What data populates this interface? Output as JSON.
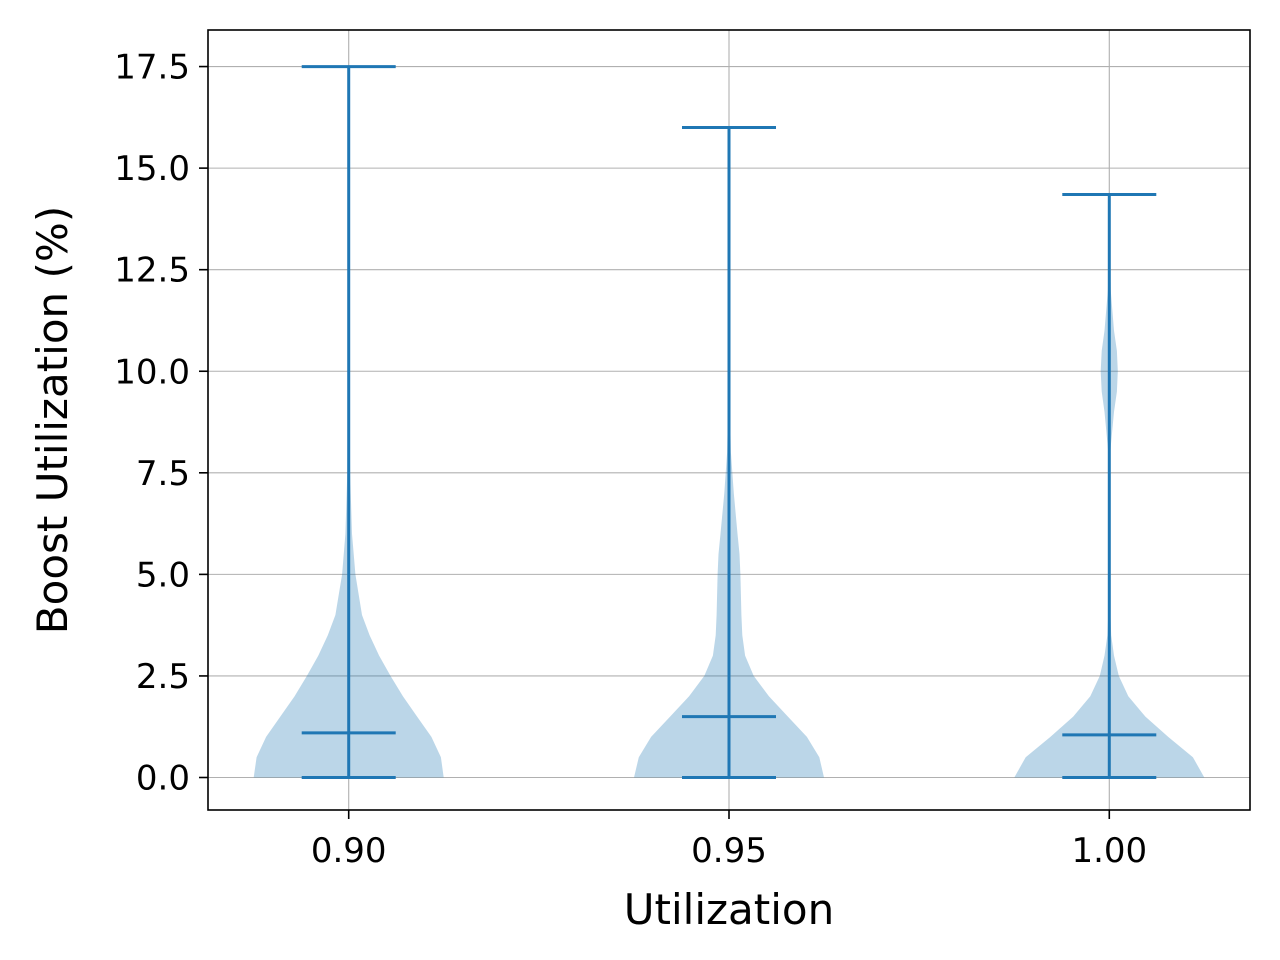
{
  "colors": {
    "accent": "#1f77b4",
    "violin_fill": "#1f77b4",
    "grid": "#b0b0b0",
    "axis": "#000000"
  },
  "chart_data": {
    "type": "violin",
    "title": "",
    "xlabel": "Utilization",
    "ylabel": "Boost Utilization (%)",
    "grid": true,
    "ylim": [
      -0.8,
      18.4
    ],
    "xlim": [
      0.8815,
      1.0185
    ],
    "categories": [
      "0.90",
      "0.95",
      "1.00"
    ],
    "yticks": [
      "0.0",
      "2.5",
      "5.0",
      "7.5",
      "10.0",
      "12.5",
      "15.0",
      "17.5"
    ],
    "violins": [
      {
        "x": 0.9,
        "label": "0.90",
        "min": 0.0,
        "max": 17.5,
        "median": 1.1,
        "density": [
          [
            0.0,
            1.0
          ],
          [
            0.5,
            0.97
          ],
          [
            1.0,
            0.87
          ],
          [
            1.5,
            0.72
          ],
          [
            2.0,
            0.57
          ],
          [
            2.5,
            0.44
          ],
          [
            3.0,
            0.32
          ],
          [
            3.5,
            0.22
          ],
          [
            4.0,
            0.14
          ],
          [
            5.0,
            0.07
          ],
          [
            6.0,
            0.035
          ],
          [
            7.5,
            0.015
          ],
          [
            10.0,
            0.007
          ],
          [
            12.5,
            0.004
          ],
          [
            15.0,
            0.003
          ],
          [
            17.5,
            0.002
          ]
        ]
      },
      {
        "x": 0.95,
        "label": "0.95",
        "min": 0.0,
        "max": 16.0,
        "median": 1.5,
        "density": [
          [
            0.0,
            1.0
          ],
          [
            0.5,
            0.95
          ],
          [
            1.0,
            0.82
          ],
          [
            1.5,
            0.62
          ],
          [
            2.0,
            0.42
          ],
          [
            2.5,
            0.26
          ],
          [
            3.0,
            0.17
          ],
          [
            3.5,
            0.14
          ],
          [
            4.0,
            0.13
          ],
          [
            5.0,
            0.12
          ],
          [
            5.5,
            0.11
          ],
          [
            6.0,
            0.09
          ],
          [
            7.0,
            0.05
          ],
          [
            8.0,
            0.02
          ],
          [
            9.0,
            0.01
          ],
          [
            10.0,
            0.005
          ],
          [
            12.5,
            0.003
          ],
          [
            16.0,
            0.002
          ]
        ]
      },
      {
        "x": 1.0,
        "label": "1.00",
        "min": 0.0,
        "max": 14.35,
        "median": 1.05,
        "density": [
          [
            0.0,
            1.0
          ],
          [
            0.5,
            0.88
          ],
          [
            1.0,
            0.62
          ],
          [
            1.5,
            0.38
          ],
          [
            2.0,
            0.2
          ],
          [
            2.5,
            0.1
          ],
          [
            3.0,
            0.05
          ],
          [
            3.5,
            0.02
          ],
          [
            4.0,
            0.012
          ],
          [
            5.0,
            0.008
          ],
          [
            6.5,
            0.008
          ],
          [
            8.0,
            0.01
          ],
          [
            9.0,
            0.05
          ],
          [
            9.5,
            0.08
          ],
          [
            10.0,
            0.09
          ],
          [
            10.5,
            0.08
          ],
          [
            11.0,
            0.05
          ],
          [
            12.0,
            0.015
          ],
          [
            13.0,
            0.005
          ],
          [
            14.35,
            0.002
          ]
        ]
      }
    ]
  }
}
